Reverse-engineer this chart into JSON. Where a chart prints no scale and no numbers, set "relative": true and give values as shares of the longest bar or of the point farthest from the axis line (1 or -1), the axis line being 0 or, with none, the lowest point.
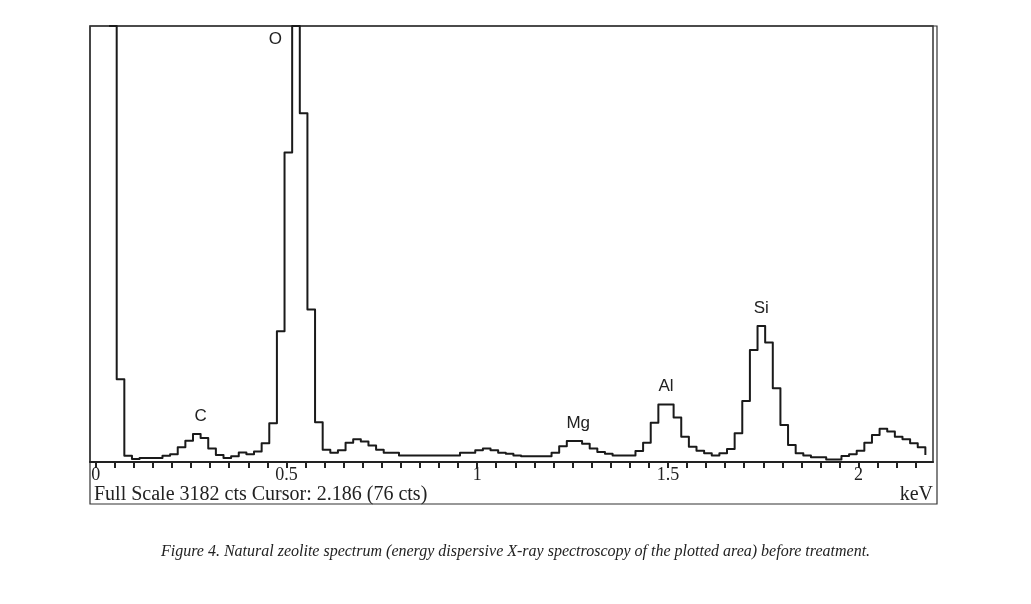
{
  "chart_data": {
    "type": "step",
    "relative": true,
    "xlabel": "keV",
    "marker": "none",
    "xlim": [
      -0.015,
      2.195
    ],
    "xticks": [
      0,
      {
        "value": 0.05,
        "label": null
      },
      {
        "value": 0.1,
        "label": null
      },
      {
        "value": 0.15,
        "label": null
      },
      {
        "value": 0.2,
        "label": null
      },
      {
        "value": 0.25,
        "label": null
      },
      {
        "value": 0.3,
        "label": null
      },
      {
        "value": 0.35,
        "label": null
      },
      {
        "value": 0.4,
        "label": null
      },
      {
        "value": 0.45,
        "label": null
      },
      0.5,
      {
        "value": 0.55,
        "label": null
      },
      {
        "value": 0.6,
        "label": null
      },
      {
        "value": 0.65,
        "label": null
      },
      {
        "value": 0.7,
        "label": null
      },
      {
        "value": 0.75,
        "label": null
      },
      {
        "value": 0.8,
        "label": null
      },
      {
        "value": 0.85,
        "label": null
      },
      {
        "value": 0.9,
        "label": null
      },
      {
        "value": 0.95,
        "label": null
      },
      1,
      {
        "value": 1.05,
        "label": null
      },
      {
        "value": 1.1,
        "label": null
      },
      {
        "value": 1.15,
        "label": null
      },
      {
        "value": 1.2,
        "label": null
      },
      {
        "value": 1.25,
        "label": null
      },
      {
        "value": 1.3,
        "label": null
      },
      {
        "value": 1.35,
        "label": null
      },
      {
        "value": 1.4,
        "label": null
      },
      {
        "value": 1.45,
        "label": null
      },
      1.5,
      {
        "value": 1.55,
        "label": null
      },
      {
        "value": 1.6,
        "label": null
      },
      {
        "value": 1.65,
        "label": null
      },
      {
        "value": 1.7,
        "label": null
      },
      {
        "value": 1.75,
        "label": null
      },
      {
        "value": 1.8,
        "label": null
      },
      {
        "value": 1.85,
        "label": null
      },
      {
        "value": 1.9,
        "label": null
      },
      {
        "value": 1.95,
        "label": null
      },
      2,
      {
        "value": 2.05,
        "label": null
      },
      {
        "value": 2.1,
        "label": null
      },
      {
        "value": 2.15,
        "label": null
      }
    ],
    "x": [
      0.035,
      0.055,
      0.075,
      0.095,
      0.115,
      0.135,
      0.155,
      0.175,
      0.195,
      0.215,
      0.235,
      0.255,
      0.275,
      0.295,
      0.315,
      0.335,
      0.355,
      0.375,
      0.395,
      0.415,
      0.435,
      0.455,
      0.475,
      0.495,
      0.515,
      0.535,
      0.555,
      0.575,
      0.595,
      0.615,
      0.635,
      0.655,
      0.675,
      0.695,
      0.715,
      0.735,
      0.755,
      0.775,
      0.795,
      0.815,
      0.835,
      0.855,
      0.875,
      0.895,
      0.915,
      0.935,
      0.955,
      0.975,
      0.995,
      1.015,
      1.035,
      1.055,
      1.075,
      1.095,
      1.115,
      1.135,
      1.155,
      1.175,
      1.195,
      1.215,
      1.235,
      1.255,
      1.275,
      1.295,
      1.315,
      1.335,
      1.355,
      1.375,
      1.395,
      1.415,
      1.435,
      1.455,
      1.475,
      1.495,
      1.515,
      1.535,
      1.555,
      1.575,
      1.595,
      1.615,
      1.635,
      1.655,
      1.675,
      1.695,
      1.715,
      1.735,
      1.755,
      1.775,
      1.795,
      1.815,
      1.835,
      1.855,
      1.875,
      1.895,
      1.915,
      1.935,
      1.955,
      1.975,
      1.995,
      2.015,
      2.035,
      2.055,
      2.075,
      2.095,
      2.115,
      2.135,
      2.155,
      2.175
    ],
    "series": [
      {
        "color": "#1a1a1a",
        "values": [
          1,
          0.19,
          0.0145,
          0.007,
          0.009,
          0.009,
          0.009,
          0.0145,
          0.018,
          0.034,
          0.049,
          0.064,
          0.055,
          0.031,
          0.016,
          0.009,
          0.013,
          0.022,
          0.018,
          0.024,
          0.043,
          0.089,
          0.3,
          0.71,
          1,
          0.8,
          0.35,
          0.091,
          0.028,
          0.021,
          0.027,
          0.044,
          0.052,
          0.047,
          0.038,
          0.028,
          0.021,
          0.021,
          0.015,
          0.015,
          0.015,
          0.015,
          0.015,
          0.015,
          0.015,
          0.015,
          0.021,
          0.021,
          0.027,
          0.031,
          0.027,
          0.021,
          0.019,
          0.015,
          0.013,
          0.013,
          0.013,
          0.013,
          0.021,
          0.036,
          0.048,
          0.048,
          0.042,
          0.031,
          0.023,
          0.019,
          0.015,
          0.015,
          0.015,
          0.025,
          0.044,
          0.09,
          0.132,
          0.132,
          0.102,
          0.058,
          0.035,
          0.026,
          0.02,
          0.015,
          0.02,
          0.03,
          0.066,
          0.14,
          0.257,
          0.312,
          0.274,
          0.169,
          0.085,
          0.039,
          0.02,
          0.015,
          0.011,
          0.011,
          0.006,
          0.006,
          0.014,
          0.018,
          0.026,
          0.044,
          0.062,
          0.076,
          0.07,
          0.058,
          0.052,
          0.043,
          0.034,
          0.016
        ]
      }
    ],
    "annotations": [
      {
        "text": "C",
        "x": 0.275,
        "y": 0.064
      },
      {
        "text": "O",
        "x": 0.525,
        "y": 1
      },
      {
        "text": "Mg",
        "x": 1.265,
        "y": 0.048
      },
      {
        "text": "Al",
        "x": 1.495,
        "y": 0.132
      },
      {
        "text": "Si",
        "x": 1.745,
        "y": 0.312
      },
      "Full Scale 3182 cts Cursor: 2.186 (76 cts)",
      "Figure 4. Natural zeolite spectrum (energy dispersive X-ray spectroscopy of the plotted area) before treatment."
    ]
  }
}
